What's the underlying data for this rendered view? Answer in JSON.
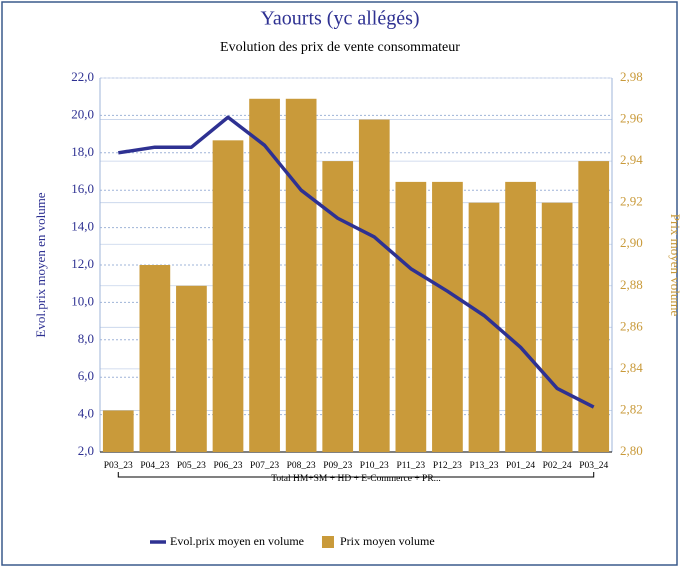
{
  "chart_data": {
    "type": "combo",
    "title": "Yaourts (yc allégés)",
    "subtitle": "Evolution des prix de vente consommateur",
    "ylabel": "Evol.prix moyen en volume",
    "y2label": "Prix moyen volume",
    "group_label": "Total HM+SM + HD + E-Commerce + PR...",
    "categories": [
      "P03_23",
      "P04_23",
      "P05_23",
      "P06_23",
      "P07_23",
      "P08_23",
      "P09_23",
      "P10_23",
      "P11_23",
      "P12_23",
      "P13_23",
      "P01_24",
      "P02_24",
      "P03_24"
    ],
    "series": [
      {
        "name": "Evol.prix moyen en volume",
        "type": "line",
        "axis": "y",
        "color": "#2e3192",
        "values": [
          18.0,
          18.3,
          18.3,
          19.9,
          18.4,
          16.0,
          14.5,
          13.5,
          11.8,
          10.6,
          9.3,
          7.6,
          5.4,
          4.4
        ]
      },
      {
        "name": "Prix moyen volume",
        "type": "bar",
        "axis": "y2",
        "color": "#c99a3a",
        "values": [
          2.82,
          2.89,
          2.88,
          2.95,
          2.97,
          2.97,
          2.94,
          2.96,
          2.93,
          2.93,
          2.92,
          2.93,
          2.92,
          2.94
        ]
      }
    ],
    "ylim": [
      2,
      22
    ],
    "yticks": [
      {
        "value": 2,
        "label": "2,0"
      },
      {
        "value": 4,
        "label": "4,0"
      },
      {
        "value": 6,
        "label": "6,0"
      },
      {
        "value": 8,
        "label": "8,0"
      },
      {
        "value": 10,
        "label": "10,0"
      },
      {
        "value": 12,
        "label": "12,0"
      },
      {
        "value": 14,
        "label": "14,0"
      },
      {
        "value": 16,
        "label": "16,0"
      },
      {
        "value": 18,
        "label": "18,0"
      },
      {
        "value": 20,
        "label": "20,0"
      },
      {
        "value": 22,
        "label": "22,0"
      }
    ],
    "y2lim": [
      2.8,
      2.98
    ],
    "y2ticks": [
      {
        "value": 2.8,
        "label": "2,80"
      },
      {
        "value": 2.82,
        "label": "2,82"
      },
      {
        "value": 2.84,
        "label": "2,84"
      },
      {
        "value": 2.86,
        "label": "2,86"
      },
      {
        "value": 2.88,
        "label": "2,88"
      },
      {
        "value": 2.9,
        "label": "2,90"
      },
      {
        "value": 2.92,
        "label": "2,92"
      },
      {
        "value": 2.94,
        "label": "2,94"
      },
      {
        "value": 2.96,
        "label": "2,96"
      },
      {
        "value": 2.98,
        "label": "2,98"
      }
    ],
    "grid": true,
    "legend": "bottom"
  }
}
